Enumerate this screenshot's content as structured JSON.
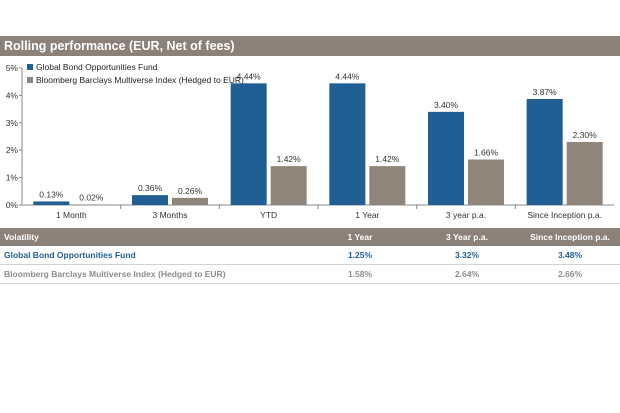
{
  "header": {
    "title": "Rolling performance (EUR, Net of fees)"
  },
  "chart_data": {
    "type": "bar",
    "categories": [
      "1 Month",
      "3 Months",
      "YTD",
      "1 Year",
      "3 year p.a.",
      "Since Inception p.a."
    ],
    "series": [
      {
        "name": "Global Bond Opportunities Fund",
        "values": [
          0.13,
          0.36,
          4.44,
          4.44,
          3.4,
          3.87
        ],
        "labels": [
          "0.13%",
          "0.36%",
          "4.44%",
          "4.44%",
          "3.40%",
          "3.87%"
        ],
        "color": "#1f5f93"
      },
      {
        "name": "Bloomberg Barclays Multiverse Index (Hedged to EUR)",
        "values": [
          0.02,
          0.26,
          1.42,
          1.42,
          1.66,
          2.3
        ],
        "labels": [
          "0.02%",
          "0.26%",
          "1.42%",
          "1.42%",
          "1.66%",
          "2.30%"
        ],
        "color": "#8f857b"
      }
    ],
    "ylim": [
      0,
      5
    ],
    "yticks": [
      0,
      1,
      2,
      3,
      4,
      5
    ],
    "ytick_labels": [
      "0%",
      "1%",
      "2%",
      "3%",
      "4%",
      "5%"
    ],
    "legend": "top-left",
    "grid": false
  },
  "volatility": {
    "header": {
      "label": "Volatility",
      "col1": "1 Year",
      "col2": "3 Year p.a.",
      "col3": "Since Inception p.a."
    },
    "rows": [
      {
        "name": "Global Bond Opportunities Fund",
        "v1": "1.25%",
        "v2": "3.32%",
        "v3": "3.48%"
      },
      {
        "name": "Bloomberg Barclays Multiverse Index (Hedged to EUR)",
        "v1": "1.58%",
        "v2": "2.64%",
        "v3": "2.66%"
      }
    ]
  }
}
